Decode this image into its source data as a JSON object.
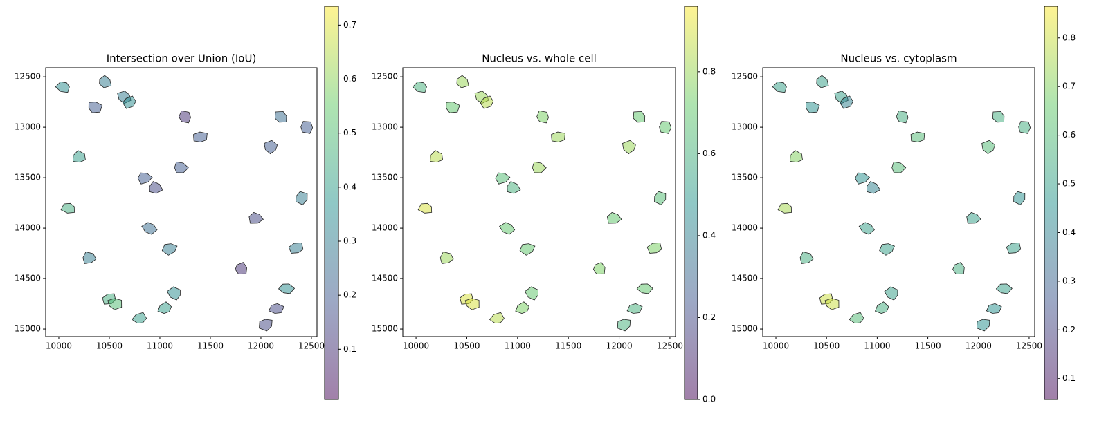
{
  "chart_data": [
    {
      "type": "scatter",
      "title": "Intersection over Union (IoU)",
      "x": [
        10050,
        10200,
        10350,
        10500,
        10650,
        10800,
        10950,
        11100,
        11250,
        11400,
        11800,
        11950,
        12100,
        12250,
        12400,
        10100,
        10300,
        10550,
        10700,
        10900,
        11050,
        11200,
        12050,
        12200,
        12350,
        10450,
        10850,
        11150,
        12150,
        12450
      ],
      "y": [
        12600,
        13300,
        12800,
        14700,
        12700,
        14900,
        13600,
        14200,
        12900,
        13100,
        14400,
        13900,
        13200,
        14600,
        13700,
        13800,
        14300,
        14750,
        12750,
        14000,
        14800,
        13400,
        14950,
        12900,
        14200,
        12550,
        13500,
        14650,
        14800,
        13000
      ],
      "values": [
        0.35,
        0.4,
        0.2,
        0.45,
        0.3,
        0.4,
        0.15,
        0.3,
        0.1,
        0.2,
        0.1,
        0.15,
        0.2,
        0.35,
        0.3,
        0.45,
        0.3,
        0.5,
        0.35,
        0.25,
        0.4,
        0.2,
        0.15,
        0.25,
        0.3,
        0.3,
        0.2,
        0.35,
        0.15,
        0.2
      ],
      "xlim": [
        9870,
        12555
      ],
      "xticks": [
        10000,
        10500,
        11000,
        11500,
        12000,
        12500
      ],
      "ylim": [
        15075,
        12410
      ],
      "yticks": [
        12500,
        13000,
        13500,
        14000,
        14500,
        15000
      ],
      "clim": [
        0.007,
        0.735
      ],
      "cticks": [
        0.1,
        0.2,
        0.3,
        0.4,
        0.5,
        0.6,
        0.7
      ],
      "colormap": [
        "#440154",
        "#3b528b",
        "#21918c",
        "#5ec962",
        "#fde725"
      ],
      "alpha": 0.5
    },
    {
      "type": "scatter",
      "title": "Nucleus vs. whole cell",
      "x": [
        10050,
        10200,
        10350,
        10500,
        10650,
        10800,
        10950,
        11100,
        11250,
        11400,
        11800,
        11950,
        12100,
        12250,
        12400,
        10100,
        10300,
        10550,
        10700,
        10900,
        11050,
        11200,
        12050,
        12200,
        12350,
        10450,
        10850,
        11150,
        12150,
        12450
      ],
      "y": [
        12600,
        13300,
        12800,
        14700,
        12700,
        14900,
        13600,
        14200,
        12900,
        13100,
        14400,
        13900,
        13200,
        14600,
        13700,
        13800,
        14300,
        14750,
        12750,
        14000,
        14800,
        13400,
        14950,
        12900,
        14200,
        12550,
        13500,
        14650,
        14800,
        13000
      ],
      "values": [
        0.6,
        0.85,
        0.7,
        0.9,
        0.8,
        0.85,
        0.6,
        0.7,
        0.75,
        0.8,
        0.75,
        0.7,
        0.8,
        0.7,
        0.65,
        0.9,
        0.8,
        0.9,
        0.85,
        0.7,
        0.75,
        0.8,
        0.6,
        0.7,
        0.75,
        0.8,
        0.65,
        0.7,
        0.6,
        0.7
      ],
      "xlim": [
        9870,
        12555
      ],
      "xticks": [
        10000,
        10500,
        11000,
        11500,
        12000,
        12500
      ],
      "ylim": [
        15075,
        12410
      ],
      "yticks": [
        12500,
        13000,
        13500,
        14000,
        14500,
        15000
      ],
      "clim": [
        0,
        0.96
      ],
      "cticks": [
        {
          "value": 0,
          "label": "0.0"
        },
        0.2,
        0.4,
        0.6,
        0.8
      ],
      "colormap": [
        "#440154",
        "#3b528b",
        "#21918c",
        "#5ec962",
        "#fde725"
      ],
      "alpha": 0.5
    },
    {
      "type": "scatter",
      "title": "Nucleus vs. cytoplasm",
      "x": [
        10050,
        10200,
        10350,
        10500,
        10650,
        10800,
        10950,
        11100,
        11250,
        11400,
        11800,
        11950,
        12100,
        12250,
        12400,
        10100,
        10300,
        10550,
        10700,
        10900,
        11050,
        11200,
        12050,
        12200,
        12350,
        10450,
        10850,
        11150,
        12150,
        12450
      ],
      "y": [
        12600,
        13300,
        12800,
        14700,
        12700,
        14900,
        13600,
        14200,
        12900,
        13100,
        14400,
        13900,
        13200,
        14600,
        13700,
        13800,
        14300,
        14750,
        12750,
        14000,
        14800,
        13400,
        14950,
        12900,
        14200,
        12550,
        13500,
        14650,
        14800,
        13000
      ],
      "values": [
        0.5,
        0.7,
        0.45,
        0.8,
        0.5,
        0.6,
        0.4,
        0.5,
        0.55,
        0.6,
        0.55,
        0.5,
        0.6,
        0.5,
        0.45,
        0.75,
        0.55,
        0.8,
        0.4,
        0.5,
        0.55,
        0.6,
        0.45,
        0.55,
        0.5,
        0.5,
        0.45,
        0.5,
        0.45,
        0.55
      ],
      "xlim": [
        9870,
        12555
      ],
      "xticks": [
        10000,
        10500,
        11000,
        11500,
        12000,
        12500
      ],
      "ylim": [
        15075,
        12410
      ],
      "yticks": [
        12500,
        13000,
        13500,
        14000,
        14500,
        15000
      ],
      "clim": [
        0.057,
        0.865
      ],
      "cticks": [
        0.1,
        0.2,
        0.3,
        0.4,
        0.5,
        0.6,
        0.7,
        0.8
      ],
      "colormap": [
        "#440154",
        "#3b528b",
        "#21918c",
        "#5ec962",
        "#fde725"
      ],
      "alpha": 0.5
    }
  ]
}
